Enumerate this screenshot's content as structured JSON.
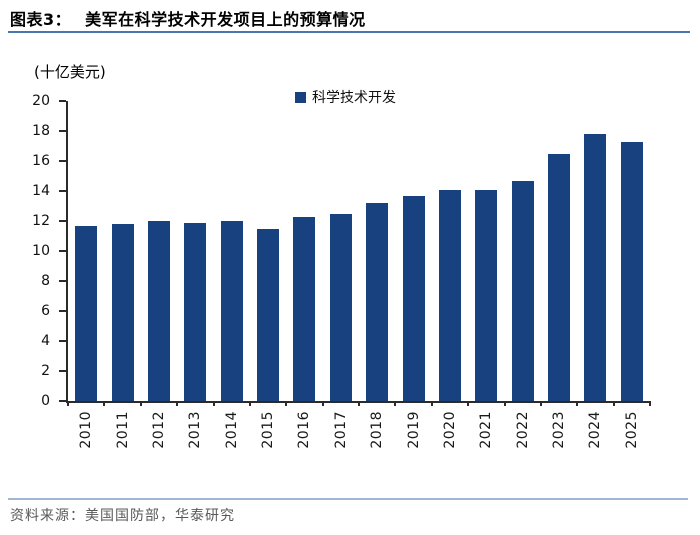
{
  "header": {
    "figure_label": "图表3：",
    "title": "美军在科学技术开发项目上的预算情况"
  },
  "chart": {
    "unit_label": "(十亿美元)",
    "legend_label": "科学技术开发"
  },
  "chart_data": {
    "type": "bar",
    "title": "美军在科学技术开发项目上的预算情况",
    "categories": [
      "2010",
      "2011",
      "2012",
      "2013",
      "2014",
      "2015",
      "2016",
      "2017",
      "2018",
      "2019",
      "2020",
      "2021",
      "2022",
      "2023",
      "2024",
      "2025"
    ],
    "series": [
      {
        "name": "科学技术开发",
        "values": [
          11.7,
          11.8,
          12.0,
          11.9,
          12.0,
          11.5,
          12.3,
          12.5,
          13.2,
          13.7,
          14.1,
          14.1,
          14.7,
          16.5,
          17.8,
          17.3
        ]
      }
    ],
    "xlabel": "",
    "ylabel": "(十亿美元)",
    "ylim": [
      0,
      20
    ],
    "ytick_step": 2,
    "bar_color": "#17427F",
    "grid": false,
    "legend_position": "top-center",
    "xtick_rotation": 90
  },
  "footer": {
    "source": "资料来源：美国国防部，华泰研究"
  },
  "colors": {
    "bar": "#17427F",
    "title_rule": "#4a76ae",
    "footer_rule": "#9fb6d9",
    "axis": "#2b2b2b"
  }
}
